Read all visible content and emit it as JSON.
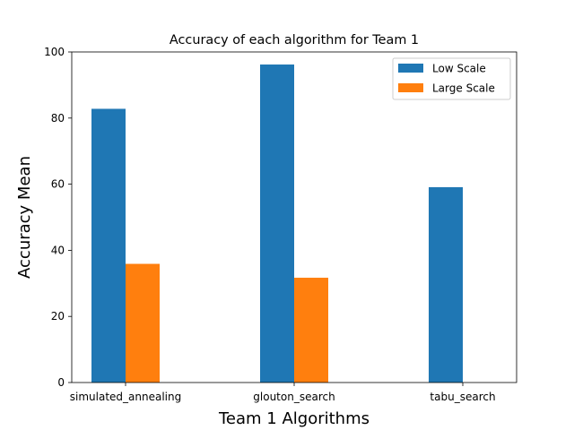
{
  "chart_data": {
    "type": "bar",
    "title": "Accuracy of each algorithm for Team 1",
    "xlabel": "Team 1 Algorithms",
    "ylabel": "Accuracy Mean",
    "categories": [
      "simulated_annealing",
      "glouton_search",
      "tabu_search"
    ],
    "series": [
      {
        "name": "Low Scale",
        "color": "#1f77b4",
        "values": [
          82.8,
          96.2,
          59.1
        ]
      },
      {
        "name": "Large Scale",
        "color": "#ff7f0e",
        "values": [
          35.9,
          31.7,
          0
        ]
      }
    ],
    "ylim": [
      0,
      100
    ],
    "yticks": [
      0,
      20,
      40,
      60,
      80,
      100
    ],
    "grid": false,
    "legend_position": "top-right"
  }
}
